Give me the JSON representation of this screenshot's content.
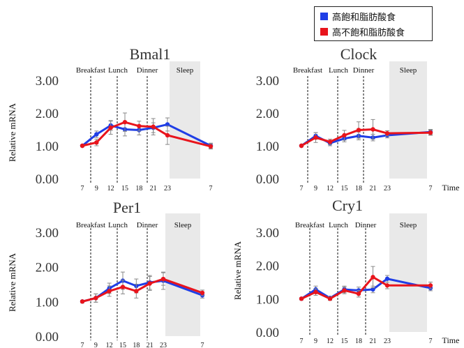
{
  "legend": {
    "items": [
      {
        "label": "高飽和脂肪酸食",
        "color": "#1f3ee6"
      },
      {
        "label": "高不飽和脂肪酸食",
        "color": "#e8141c"
      }
    ]
  },
  "chart_data": [
    {
      "type": "line",
      "title": "Bmal1",
      "ylabel": "Relative mRNA",
      "xlabel": "",
      "ylim": [
        0,
        3
      ],
      "yticks": [
        "0.00",
        "1.00",
        "2.00",
        "3.00"
      ],
      "xticks": [
        "7",
        "9",
        "12",
        "15",
        "18",
        "21",
        "23",
        "7"
      ],
      "events": [
        "Breakfast",
        "Lunch",
        "Dinner"
      ],
      "sleep_label": "Sleep",
      "series": [
        {
          "color": "#1f3ee6",
          "x": [
            7,
            9,
            12,
            15,
            18,
            21,
            23,
            31
          ],
          "y": [
            1.0,
            1.35,
            1.62,
            1.5,
            1.48,
            1.55,
            1.65,
            1.0
          ],
          "err": [
            0.03,
            0.1,
            0.15,
            0.2,
            0.15,
            0.15,
            0.2,
            0.08
          ]
        },
        {
          "color": "#e8141c",
          "x": [
            7,
            9,
            12,
            15,
            18,
            21,
            23,
            31
          ],
          "y": [
            1.0,
            1.1,
            1.55,
            1.72,
            1.6,
            1.58,
            1.32,
            0.98
          ],
          "err": [
            0.03,
            0.1,
            0.2,
            0.28,
            0.15,
            0.25,
            0.28,
            0.08
          ]
        }
      ]
    },
    {
      "type": "line",
      "title": "Clock",
      "ylabel": "",
      "xlabel": "Time",
      "ylim": [
        0,
        3
      ],
      "yticks": [
        "0.00",
        "1.00",
        "2.00",
        "3.00"
      ],
      "xticks": [
        "7",
        "9",
        "12",
        "15",
        "18",
        "21",
        "23",
        "7"
      ],
      "events": [
        "Breakfast",
        "Lunch",
        "Dinner"
      ],
      "sleep_label": "Sleep",
      "series": [
        {
          "color": "#1f3ee6",
          "x": [
            7,
            9,
            12,
            15,
            18,
            21,
            23,
            31
          ],
          "y": [
            1.0,
            1.3,
            1.08,
            1.22,
            1.3,
            1.25,
            1.32,
            1.42
          ],
          "err": [
            0.03,
            0.1,
            0.08,
            0.1,
            0.12,
            0.1,
            0.08,
            0.08
          ]
        },
        {
          "color": "#e8141c",
          "x": [
            7,
            9,
            12,
            15,
            18,
            21,
            23,
            31
          ],
          "y": [
            1.0,
            1.25,
            1.12,
            1.32,
            1.48,
            1.5,
            1.38,
            1.4
          ],
          "err": [
            0.03,
            0.15,
            0.08,
            0.15,
            0.25,
            0.3,
            0.08,
            0.08
          ]
        }
      ]
    },
    {
      "type": "line",
      "title": "Per1",
      "ylabel": "Relative mRNA",
      "xlabel": "",
      "ylim": [
        0,
        3
      ],
      "yticks": [
        "0.00",
        "1.00",
        "2.00",
        "3.00"
      ],
      "xticks": [
        "7",
        "9",
        "12",
        "15",
        "18",
        "21",
        "23",
        "7"
      ],
      "events": [
        "Breakfast",
        "Lunch",
        "Dinner"
      ],
      "sleep_label": "Sleep",
      "series": [
        {
          "color": "#1f3ee6",
          "x": [
            7,
            9,
            12,
            15,
            18,
            21,
            23,
            31
          ],
          "y": [
            1.0,
            1.1,
            1.38,
            1.6,
            1.45,
            1.55,
            1.6,
            1.18
          ],
          "err": [
            0.03,
            0.12,
            0.15,
            0.25,
            0.2,
            0.2,
            0.25,
            0.08
          ]
        },
        {
          "color": "#e8141c",
          "x": [
            7,
            9,
            12,
            15,
            18,
            21,
            23,
            31
          ],
          "y": [
            1.0,
            1.1,
            1.3,
            1.42,
            1.3,
            1.52,
            1.65,
            1.25
          ],
          "err": [
            0.03,
            0.12,
            0.15,
            0.2,
            0.2,
            0.2,
            0.18,
            0.08
          ]
        }
      ]
    },
    {
      "type": "line",
      "title": "Cry1",
      "ylabel": "Relative mRNA",
      "xlabel": "Time",
      "ylim": [
        0,
        3
      ],
      "yticks": [
        "0.00",
        "1.00",
        "2.00",
        "3.00"
      ],
      "xticks": [
        "7",
        "9",
        "12",
        "15",
        "18",
        "21",
        "23",
        "7"
      ],
      "events": [
        "Breakfast",
        "Lunch",
        "Dinner"
      ],
      "sleep_label": "Sleep",
      "series": [
        {
          "color": "#1f3ee6",
          "x": [
            7,
            9,
            12,
            15,
            18,
            21,
            23,
            31
          ],
          "y": [
            1.0,
            1.28,
            1.02,
            1.28,
            1.25,
            1.28,
            1.6,
            1.32
          ],
          "err": [
            0.03,
            0.1,
            0.05,
            0.1,
            0.1,
            0.1,
            0.1,
            0.08
          ]
        },
        {
          "color": "#e8141c",
          "x": [
            7,
            9,
            12,
            15,
            18,
            21,
            23,
            31
          ],
          "y": [
            1.0,
            1.2,
            1.0,
            1.25,
            1.15,
            1.65,
            1.4,
            1.4
          ],
          "err": [
            0.03,
            0.1,
            0.05,
            0.1,
            0.1,
            0.32,
            0.1,
            0.1
          ]
        }
      ]
    }
  ]
}
